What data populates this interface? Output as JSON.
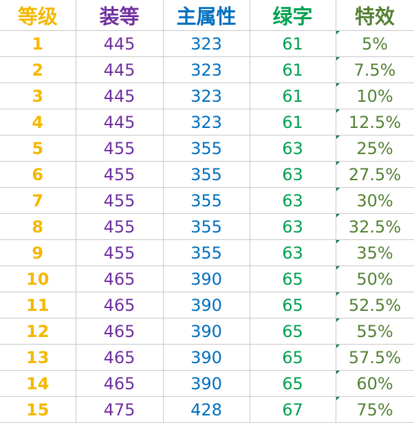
{
  "headers": [
    "等级",
    "装等",
    "主属性",
    "绿字",
    "特效"
  ],
  "colors": {
    "level": "#f5b800",
    "ilvl": "#7030a0",
    "main_stat": "#0070c0",
    "green": "#00a050",
    "effect": "#548235"
  },
  "rows": [
    [
      "1",
      "445",
      "323",
      "61",
      "5%"
    ],
    [
      "2",
      "445",
      "323",
      "61",
      "7.5%"
    ],
    [
      "3",
      "445",
      "323",
      "61",
      "10%"
    ],
    [
      "4",
      "445",
      "323",
      "61",
      "12.5%"
    ],
    [
      "5",
      "455",
      "355",
      "63",
      "25%"
    ],
    [
      "6",
      "455",
      "355",
      "63",
      "27.5%"
    ],
    [
      "7",
      "455",
      "355",
      "63",
      "30%"
    ],
    [
      "8",
      "455",
      "355",
      "63",
      "32.5%"
    ],
    [
      "9",
      "455",
      "355",
      "63",
      "35%"
    ],
    [
      "10",
      "465",
      "390",
      "65",
      "50%"
    ],
    [
      "11",
      "465",
      "390",
      "65",
      "52.5%"
    ],
    [
      "12",
      "465",
      "390",
      "65",
      "55%"
    ],
    [
      "13",
      "465",
      "390",
      "65",
      "57.5%"
    ],
    [
      "14",
      "465",
      "390",
      "65",
      "60%"
    ],
    [
      "15",
      "475",
      "428",
      "67",
      "75%"
    ]
  ]
}
